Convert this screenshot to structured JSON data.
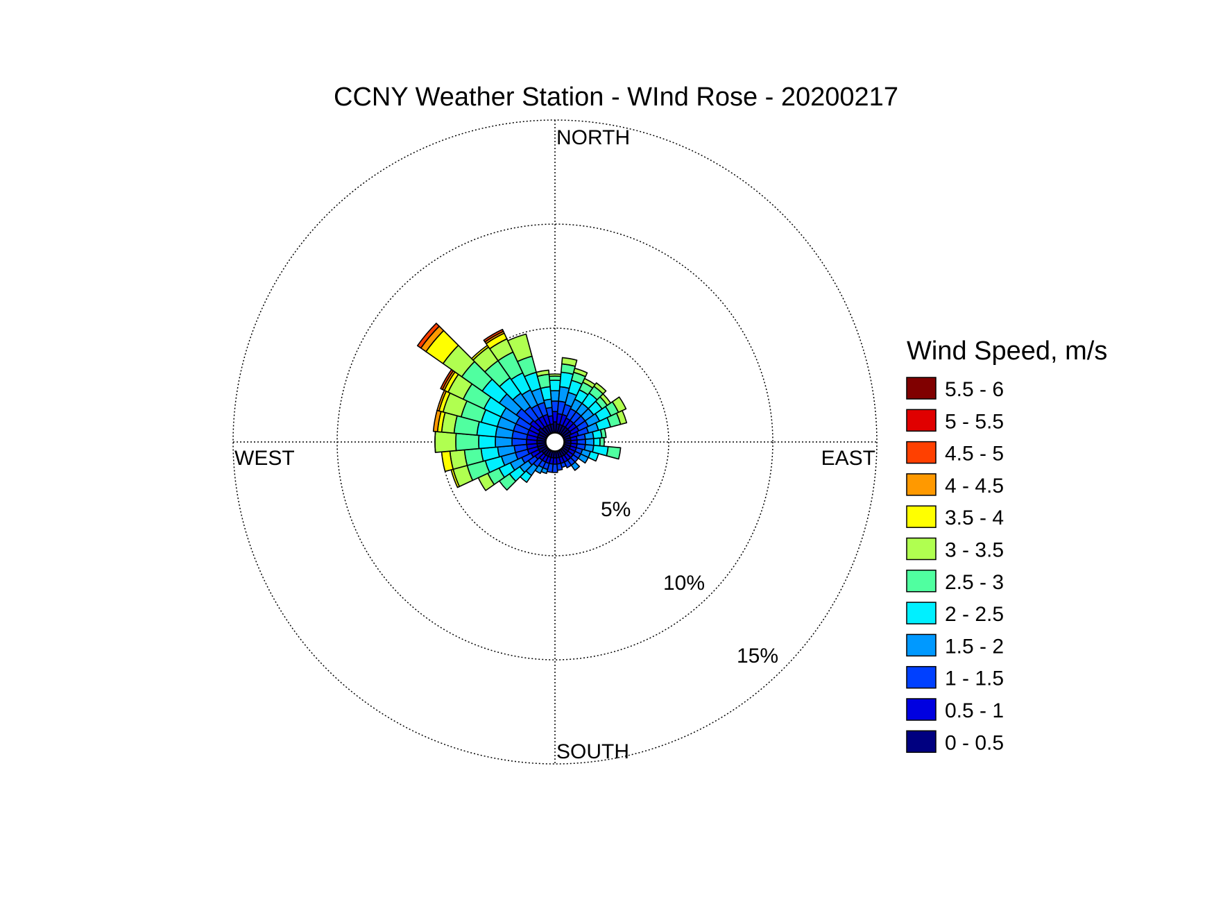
{
  "chart_data": {
    "type": "wind_rose",
    "title": "CCNY Weather Station - WInd Rose - 20200217",
    "direction_labels": {
      "north": "NORTH",
      "south": "SOUTH",
      "east": "EAST",
      "west": "WEST"
    },
    "ring_values": [
      5,
      10,
      15
    ],
    "ring_labels": [
      "5%",
      "10%",
      "15%"
    ],
    "radial_unit": "%",
    "sector_width_deg": 10,
    "legend": {
      "title": "Wind Speed, m/s",
      "bins": [
        {
          "label": "5.5 - 6",
          "color": "#800000"
        },
        {
          "label": "5 - 5.5",
          "color": "#e00000"
        },
        {
          "label": "4.5 - 5",
          "color": "#ff4000"
        },
        {
          "label": "4 - 4.5",
          "color": "#ff9900"
        },
        {
          "label": "3.5 - 4",
          "color": "#ffff00"
        },
        {
          "label": "3 - 3.5",
          "color": "#b0ff50"
        },
        {
          "label": "2.5 - 3",
          "color": "#50ffa0"
        },
        {
          "label": "2 - 2.5",
          "color": "#00f0ff"
        },
        {
          "label": "1.5 - 2",
          "color": "#0099ff"
        },
        {
          "label": "1 - 1.5",
          "color": "#0040ff"
        },
        {
          "label": "0.5 - 1",
          "color": "#0000e0"
        },
        {
          "label": "0 - 0.5",
          "color": "#000080"
        }
      ]
    },
    "speed_bin_colors_low_to_high": [
      "#000080",
      "#0000e0",
      "#0040ff",
      "#0099ff",
      "#00f0ff",
      "#50ffa0",
      "#b0ff50",
      "#ffff00",
      "#ff9900",
      "#ff4000",
      "#e00000",
      "#800000"
    ],
    "sectors": [
      {
        "direction_deg": 0,
        "cumulative": [
          0.5,
          1.0,
          1.5,
          2.0,
          2.5,
          2.7,
          2.8
        ]
      },
      {
        "direction_deg": 10,
        "cumulative": [
          0.4,
          0.9,
          1.5,
          2.2,
          2.9,
          3.3,
          3.6
        ]
      },
      {
        "direction_deg": 20,
        "cumulative": [
          0.4,
          0.9,
          1.4,
          2.0,
          2.6,
          3.0,
          3.2
        ]
      },
      {
        "direction_deg": 30,
        "cumulative": [
          0.4,
          0.8,
          1.3,
          1.8,
          2.3,
          2.7,
          2.9
        ]
      },
      {
        "direction_deg": 40,
        "cumulative": [
          0.4,
          0.8,
          1.3,
          1.8,
          2.4,
          2.8,
          3.0
        ]
      },
      {
        "direction_deg": 50,
        "cumulative": [
          0.4,
          0.8,
          1.3,
          1.8,
          2.3,
          2.6,
          2.8
        ]
      },
      {
        "direction_deg": 60,
        "cumulative": [
          0.4,
          0.8,
          1.3,
          1.9,
          2.5,
          2.9,
          3.3
        ]
      },
      {
        "direction_deg": 70,
        "cumulative": [
          0.3,
          0.7,
          1.2,
          1.7,
          2.3,
          2.8,
          3.1
        ]
      },
      {
        "direction_deg": 80,
        "cumulative": [
          0.3,
          0.6,
          1.0,
          1.4,
          1.8,
          2.0
        ]
      },
      {
        "direction_deg": 90,
        "cumulative": [
          0.3,
          0.6,
          1.0,
          1.4,
          1.7,
          1.9
        ]
      },
      {
        "direction_deg": 100,
        "cumulative": [
          0.3,
          0.6,
          1.0,
          1.4,
          2.1,
          2.7
        ]
      },
      {
        "direction_deg": 110,
        "cumulative": [
          0.3,
          0.6,
          0.9,
          1.3,
          1.7
        ]
      },
      {
        "direction_deg": 120,
        "cumulative": [
          0.3,
          0.6,
          0.9,
          1.3
        ]
      },
      {
        "direction_deg": 130,
        "cumulative": [
          0.3,
          0.6,
          0.9
        ]
      },
      {
        "direction_deg": 140,
        "cumulative": [
          0.3,
          0.6,
          0.9,
          1.2
        ]
      },
      {
        "direction_deg": 150,
        "cumulative": [
          0.3,
          0.6,
          0.9
        ]
      },
      {
        "direction_deg": 160,
        "cumulative": [
          0.3,
          0.6,
          0.8
        ]
      },
      {
        "direction_deg": 170,
        "cumulative": [
          0.3,
          0.6,
          0.9
        ]
      },
      {
        "direction_deg": 180,
        "cumulative": [
          0.3,
          0.6,
          1.0
        ]
      },
      {
        "direction_deg": 190,
        "cumulative": [
          0.3,
          0.6,
          1.0
        ]
      },
      {
        "direction_deg": 200,
        "cumulative": [
          0.3,
          0.6,
          0.9,
          1.1
        ]
      },
      {
        "direction_deg": 210,
        "cumulative": [
          0.3,
          0.6,
          0.9,
          1.2
        ]
      },
      {
        "direction_deg": 220,
        "cumulative": [
          0.3,
          0.6,
          1.0,
          1.5,
          1.9
        ]
      },
      {
        "direction_deg": 230,
        "cumulative": [
          0.3,
          0.7,
          1.1,
          1.6,
          2.2,
          2.8
        ]
      },
      {
        "direction_deg": 240,
        "cumulative": [
          0.4,
          0.8,
          1.3,
          1.9,
          2.5,
          3.1,
          3.6
        ]
      },
      {
        "direction_deg": 250,
        "cumulative": [
          0.4,
          0.9,
          1.5,
          2.2,
          3.0,
          3.9,
          4.6,
          4.7
        ]
      },
      {
        "direction_deg": 260,
        "cumulative": [
          0.4,
          0.9,
          1.5,
          2.3,
          3.1,
          3.9,
          4.6,
          5.0
        ]
      },
      {
        "direction_deg": 270,
        "cumulative": [
          0.4,
          0.9,
          1.6,
          2.4,
          3.2,
          4.3,
          5.3,
          5.3
        ]
      },
      {
        "direction_deg": 280,
        "cumulative": [
          0.4,
          0.9,
          1.6,
          2.4,
          3.3,
          4.4,
          5.0,
          5.2,
          5.4
        ]
      },
      {
        "direction_deg": 290,
        "cumulative": [
          0.4,
          0.9,
          1.6,
          2.4,
          3.2,
          4.2,
          5.1,
          5.3,
          5.4
        ]
      },
      {
        "direction_deg": 300,
        "cumulative": [
          0.4,
          0.9,
          1.6,
          2.4,
          3.3,
          4.4,
          5.2,
          5.4,
          5.5,
          5.6
        ]
      },
      {
        "direction_deg": 310,
        "cumulative": [
          0.5,
          1.0,
          1.8,
          2.8,
          3.8,
          5.0,
          6.1,
          7.1,
          7.4,
          7.6
        ]
      },
      {
        "direction_deg": 320,
        "cumulative": [
          0.4,
          0.9,
          1.6,
          2.4,
          3.3,
          4.3,
          5.1,
          5.2
        ]
      },
      {
        "direction_deg": 330,
        "cumulative": [
          0.4,
          0.9,
          1.5,
          2.3,
          3.2,
          4.3,
          5.0,
          5.3,
          5.4,
          5.5
        ]
      },
      {
        "direction_deg": 340,
        "cumulative": [
          0.4,
          0.9,
          1.5,
          2.2,
          3.0,
          3.8,
          4.9
        ]
      },
      {
        "direction_deg": 350,
        "cumulative": [
          0.4,
          0.8,
          1.2,
          1.6,
          2.2,
          2.8,
          3.0
        ]
      }
    ]
  }
}
